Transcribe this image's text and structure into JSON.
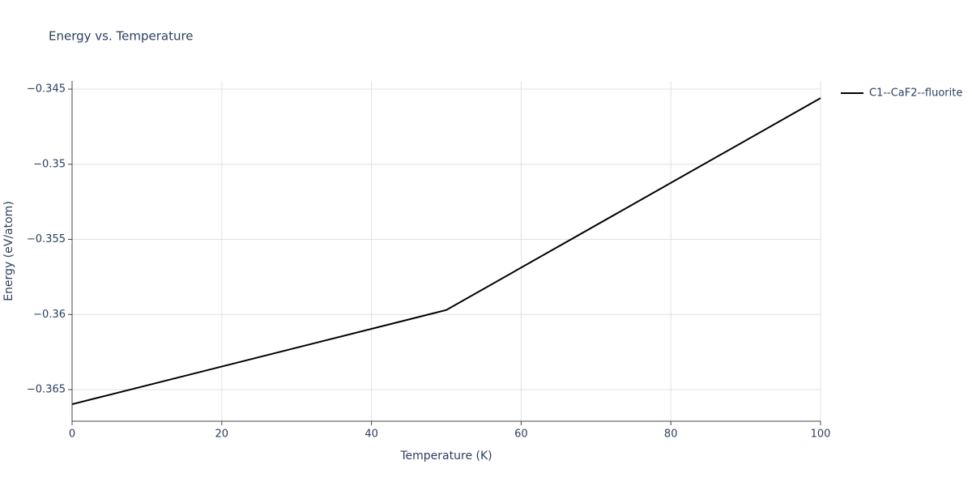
{
  "chart_data": {
    "type": "line",
    "title": "Energy vs. Temperature",
    "x_label": "Temperature (K)",
    "y_label": "Energy (eV/atom)",
    "x": [
      0,
      50,
      100
    ],
    "series": [
      {
        "name": "C1--CaF2--fluorite",
        "color": "#000000",
        "values": [
          -0.36597,
          -0.3597,
          -0.3456
        ]
      }
    ],
    "xlim": [
      0,
      100
    ],
    "xticks": [
      0,
      20,
      40,
      60,
      80,
      100
    ],
    "ylim": [
      -0.3671,
      -0.34446
    ],
    "yticks": [
      {
        "value": -0.365,
        "label": "−0.365"
      },
      {
        "value": -0.36,
        "label": "−0.36"
      },
      {
        "value": -0.355,
        "label": "−0.355"
      },
      {
        "value": -0.35,
        "label": "−0.35"
      },
      {
        "value": -0.345,
        "label": "−0.345"
      }
    ],
    "grid": true,
    "legend": "top-right"
  }
}
